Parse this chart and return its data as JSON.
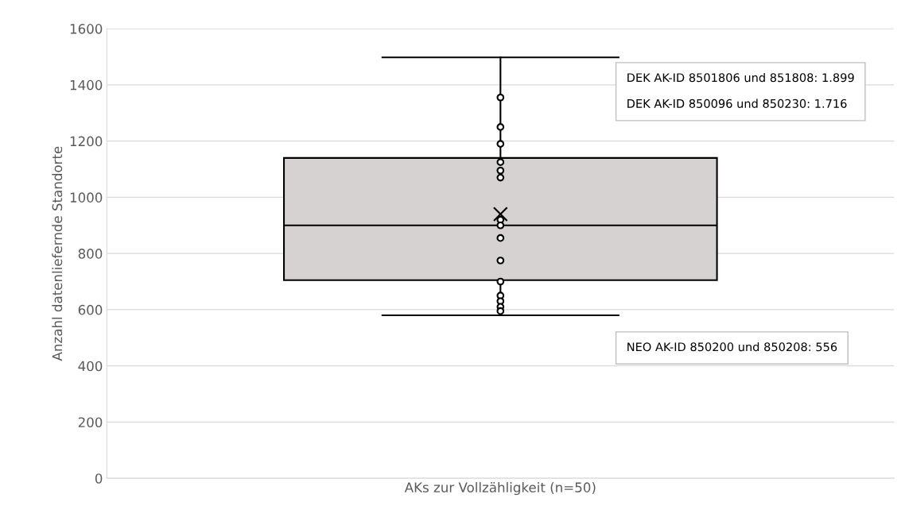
{
  "chart_data": {
    "type": "box",
    "ylabel": "Anzahl datenliefernde Standorte",
    "categories": [
      "AKs zur Vollzähligkeit (n=50)"
    ],
    "boxes": [
      {
        "low": 580,
        "q1": 705,
        "median": 900,
        "q3": 1140,
        "high": 1498,
        "mean": 940
      }
    ],
    "color": "#d6d2d2",
    "series": [
      {
        "type": "scatter",
        "color": "#000000",
        "x": [
          "AKs zur Vollzähligkeit (n=50)",
          "AKs zur Vollzähligkeit (n=50)",
          "AKs zur Vollzähligkeit (n=50)",
          "AKs zur Vollzähligkeit (n=50)",
          "AKs zur Vollzähligkeit (n=50)",
          "AKs zur Vollzähligkeit (n=50)",
          "AKs zur Vollzähligkeit (n=50)",
          "AKs zur Vollzähligkeit (n=50)",
          "AKs zur Vollzähligkeit (n=50)",
          "AKs zur Vollzähligkeit (n=50)",
          "AKs zur Vollzähligkeit (n=50)",
          "AKs zur Vollzähligkeit (n=50)",
          "AKs zur Vollzähligkeit (n=50)",
          "AKs zur Vollzähligkeit (n=50)",
          "AKs zur Vollzähligkeit (n=50)"
        ],
        "values": [
          1355,
          1250,
          1190,
          1125,
          1095,
          1070,
          920,
          900,
          855,
          775,
          700,
          650,
          630,
          610,
          595
        ]
      }
    ],
    "annotations": [
      "DEK AK-ID 8501806 und 851808: 1.899",
      "DEK AK-ID 850096 und 850230: 1.716",
      "NEO AK-ID 850200 und 850208: 556"
    ],
    "ylim": [
      0,
      1600
    ],
    "yticks": [
      0,
      200,
      400,
      600,
      800,
      1000,
      1200,
      1400,
      1600
    ],
    "grid": "y",
    "marker": "circle"
  }
}
